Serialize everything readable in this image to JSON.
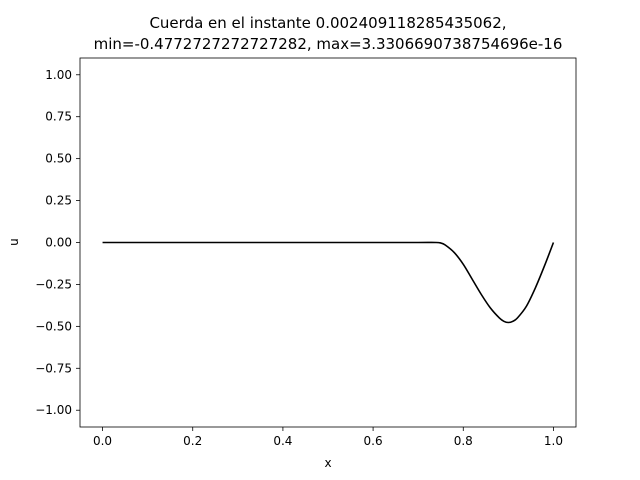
{
  "chart_data": {
    "type": "line",
    "title_line1": "Cuerda en el instante 0.002409118285435062,",
    "title_line2": "min=-0.4772727272727282, max=3.3306690738754696e-16",
    "xlabel": "x",
    "ylabel": "u",
    "xlim": [
      -0.05,
      1.05
    ],
    "ylim": [
      -1.1,
      1.1
    ],
    "grid": false,
    "x_ticks": [
      {
        "value": 0.0,
        "label": "0.0"
      },
      {
        "value": 0.2,
        "label": "0.2"
      },
      {
        "value": 0.4,
        "label": "0.4"
      },
      {
        "value": 0.6,
        "label": "0.6"
      },
      {
        "value": 0.8,
        "label": "0.8"
      },
      {
        "value": 1.0,
        "label": "1.0"
      }
    ],
    "y_ticks": [
      {
        "value": 1.0,
        "label": "1.00"
      },
      {
        "value": 0.75,
        "label": "0.75"
      },
      {
        "value": 0.5,
        "label": "0.50"
      },
      {
        "value": 0.25,
        "label": "0.25"
      },
      {
        "value": 0.0,
        "label": "0.00"
      },
      {
        "value": -0.25,
        "label": "−0.25"
      },
      {
        "value": -0.5,
        "label": "−0.50"
      },
      {
        "value": -0.75,
        "label": "−0.75"
      },
      {
        "value": -1.0,
        "label": "−1.00"
      }
    ],
    "series": [
      {
        "color": "#000000",
        "x": [
          0.0,
          0.1,
          0.2,
          0.3,
          0.4,
          0.5,
          0.6,
          0.7,
          0.74,
          0.75,
          0.76,
          0.78,
          0.8,
          0.82,
          0.84,
          0.86,
          0.88,
          0.89,
          0.9,
          0.91,
          0.92,
          0.94,
          0.96,
          0.98,
          1.0
        ],
        "y": [
          0.0,
          0.0,
          0.0,
          0.0,
          0.0,
          0.0,
          0.0,
          0.0,
          0.0,
          -0.003,
          -0.015,
          -0.06,
          -0.13,
          -0.22,
          -0.31,
          -0.39,
          -0.45,
          -0.47,
          -0.477,
          -0.47,
          -0.45,
          -0.38,
          -0.27,
          -0.14,
          0.0
        ]
      }
    ]
  }
}
